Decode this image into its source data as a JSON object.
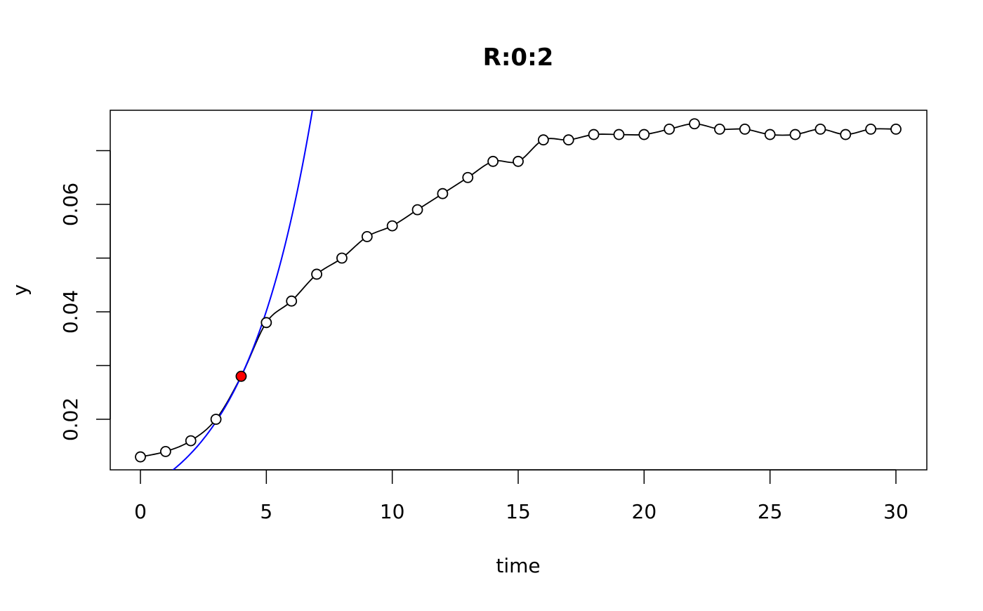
{
  "chart_data": {
    "type": "line",
    "title": "R:0:2",
    "xlabel": "time",
    "ylabel": "y",
    "xlim": [
      -1.2,
      31.2
    ],
    "ylim": [
      0.0106,
      0.0775
    ],
    "xticks": [
      0,
      5,
      10,
      15,
      20,
      25,
      30
    ],
    "xtick_labels": [
      "0",
      "5",
      "10",
      "15",
      "20",
      "25",
      "30"
    ],
    "yticks": [
      0.02,
      0.03,
      0.04,
      0.05,
      0.06,
      0.07
    ],
    "ytick_labels": [
      "0.02",
      "",
      "0.04",
      "",
      "0.06",
      ""
    ],
    "grid": false,
    "legend": "none",
    "x": [
      0,
      1,
      2,
      3,
      4,
      5,
      6,
      7,
      8,
      9,
      10,
      11,
      12,
      13,
      14,
      15,
      16,
      17,
      18,
      19,
      20,
      21,
      22,
      23,
      24,
      25,
      26,
      27,
      28,
      29,
      30
    ],
    "series": [
      {
        "values": [
          0.013,
          0.014,
          0.016,
          0.02,
          0.028,
          0.038,
          0.042,
          0.047,
          0.05,
          0.054,
          0.056,
          0.059,
          0.062,
          0.065,
          0.068,
          0.068,
          0.072,
          0.072,
          0.073,
          0.073,
          0.073,
          0.074,
          0.075,
          0.074,
          0.074,
          0.073,
          0.073,
          0.074,
          0.073,
          0.074,
          0.074
        ],
        "color": "#000000",
        "marker": "open-circle",
        "line": "smoothed"
      }
    ],
    "highlight_point": {
      "x": 4,
      "y": 0.028,
      "color": "#ff0000"
    },
    "fit_curve": {
      "type": "exponential",
      "x0": 4,
      "y0": 0.028,
      "rate": 0.36,
      "color": "#0000ff"
    }
  }
}
